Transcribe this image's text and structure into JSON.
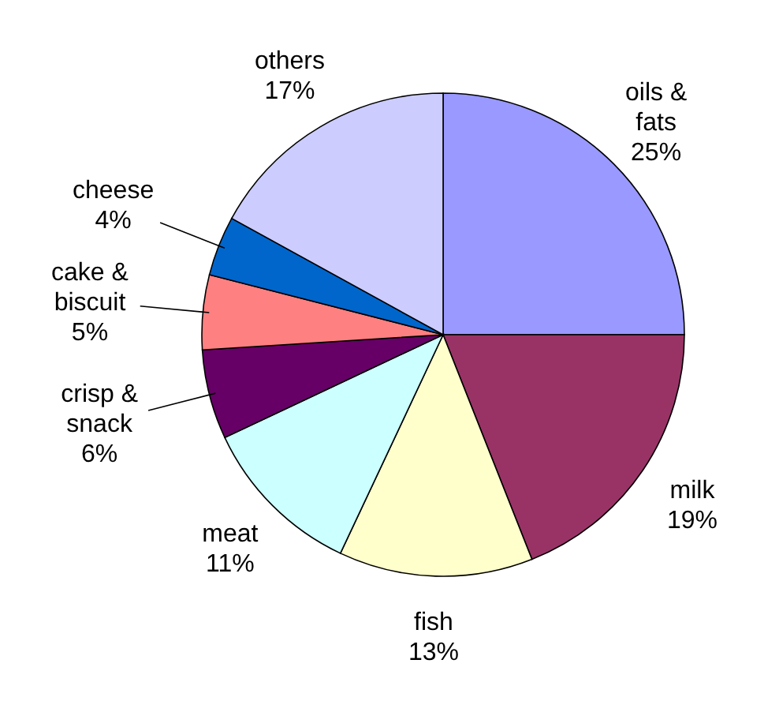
{
  "chart_data": {
    "type": "pie",
    "categories": [
      "oils & fats",
      "milk",
      "fish",
      "meat",
      "crisp & snack",
      "cake & biscuit",
      "cheese",
      "others"
    ],
    "values": [
      25,
      19,
      13,
      11,
      6,
      5,
      4,
      17
    ],
    "colors": [
      "#9999ff",
      "#993366",
      "#ffffcc",
      "#ccffff",
      "#660066",
      "#ff8080",
      "#0066cc",
      "#ccccff"
    ],
    "value_labels": [
      "25%",
      "19%",
      "13%",
      "11%",
      "6%",
      "5%",
      "4%",
      "17%"
    ]
  }
}
